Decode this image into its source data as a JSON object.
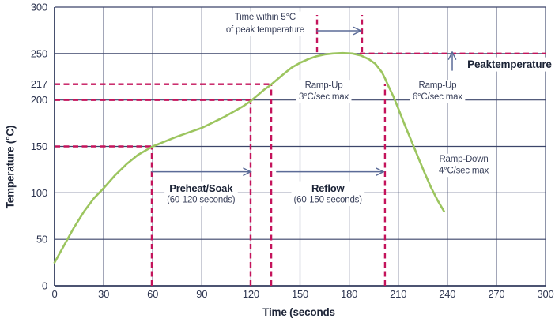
{
  "figure": {
    "background": "#ffffff"
  },
  "colors": {
    "grid": "#3c456a",
    "axis": "#333c5e",
    "tick_text": "#2c344f",
    "curve": "#9cc55f",
    "guide": "#c4135b",
    "arrow": "#5b6b97",
    "bold_text": "#1b2336",
    "text": "#3b425c"
  },
  "chart_data": {
    "type": "line",
    "title": "",
    "xlabel": "Time (seconds",
    "ylabel": "Temperature (°C)",
    "xlim": [
      0,
      300
    ],
    "ylim": [
      0,
      300
    ],
    "grid": true,
    "x_ticks": [
      0,
      30,
      60,
      90,
      120,
      150,
      180,
      210,
      240,
      270,
      300
    ],
    "y_ticks": [
      300,
      250,
      217,
      200,
      150,
      100,
      50,
      0
    ],
    "y_gridlines": [
      0,
      50,
      100,
      150,
      200,
      250,
      300
    ],
    "series": [
      {
        "name": "reflow-temperature-profile",
        "points": [
          [
            0,
            25
          ],
          [
            6,
            44
          ],
          [
            12,
            63
          ],
          [
            18,
            80
          ],
          [
            24,
            94
          ],
          [
            30,
            105
          ],
          [
            37,
            119
          ],
          [
            44,
            131
          ],
          [
            51,
            141
          ],
          [
            57,
            147
          ],
          [
            60,
            150
          ],
          [
            67,
            155
          ],
          [
            74,
            160
          ],
          [
            82,
            165
          ],
          [
            90,
            170
          ],
          [
            97,
            176
          ],
          [
            104,
            182
          ],
          [
            110,
            188
          ],
          [
            115,
            193
          ],
          [
            120,
            199
          ],
          [
            124,
            205
          ],
          [
            128,
            211
          ],
          [
            132,
            216
          ],
          [
            136,
            222
          ],
          [
            140,
            228
          ],
          [
            145,
            235
          ],
          [
            150,
            240
          ],
          [
            155,
            244
          ],
          [
            160,
            247
          ],
          [
            165,
            249
          ],
          [
            170,
            250
          ],
          [
            176,
            250.5
          ],
          [
            182,
            250
          ],
          [
            187,
            248
          ],
          [
            192,
            244
          ],
          [
            196,
            239
          ],
          [
            200,
            230
          ],
          [
            202,
            223
          ],
          [
            204,
            215
          ],
          [
            207,
            204
          ],
          [
            210,
            191
          ],
          [
            214,
            173
          ],
          [
            218,
            156
          ],
          [
            222,
            139
          ],
          [
            226,
            122
          ],
          [
            230,
            106
          ],
          [
            234,
            92
          ],
          [
            238,
            80
          ]
        ]
      }
    ],
    "guides": {
      "horizontal": [
        {
          "name": "guide-150c",
          "temp": 150,
          "t1": 0,
          "t2": 59.4
        },
        {
          "name": "guide-200c",
          "temp": 200,
          "t1": 0,
          "t2": 119.8
        },
        {
          "name": "guide-217c",
          "temp": 217,
          "t1": 0,
          "t2": 132.4
        },
        {
          "name": "guide-peak-250c",
          "temp": 250,
          "t1": 186.5,
          "t2": 300
        }
      ],
      "vertical": [
        {
          "name": "guide-60s",
          "t": 59.4,
          "temp1": 0,
          "temp2": 150
        },
        {
          "name": "guide-120s",
          "t": 119.8,
          "temp1": 0,
          "temp2": 200
        },
        {
          "name": "guide-133s",
          "t": 132.4,
          "temp1": 0,
          "temp2": 217
        },
        {
          "name": "guide-202s",
          "t": 201.9,
          "temp1": 0,
          "temp2": 217
        },
        {
          "name": "guide-peak-window-start",
          "t": 160.4,
          "temp1": 251.5,
          "temp2": 291.5
        },
        {
          "name": "guide-peak-window-end",
          "t": 187.9,
          "temp1": 251.5,
          "temp2": 291.5
        }
      ]
    },
    "arrows": [
      {
        "name": "preheat-soak-duration-arrow",
        "type": "h",
        "t1": 59.4,
        "t2": 119.8,
        "temp": 122.7
      },
      {
        "name": "reflow-duration-arrow",
        "type": "h",
        "t1": 135.7,
        "t2": 201,
        "temp": 122.7
      },
      {
        "name": "peak-window-arrow",
        "type": "h",
        "t1": 160.4,
        "t2": 187.2,
        "temp": 274.5
      },
      {
        "name": "peak-temperature-arrow",
        "type": "v",
        "t": 243,
        "temp1": 232,
        "temp2": 251.5
      }
    ],
    "annotations": [
      {
        "name": "time-within-5c-label",
        "t": 128.7,
        "temp": 283,
        "line_height": 16,
        "lines": [
          {
            "text": "Time within 5°C",
            "bold": false,
            "size": 11.5
          },
          {
            "text": "of peak temperature",
            "bold": false,
            "size": 11.5
          }
        ]
      },
      {
        "name": "peak-temperature-label",
        "t": 278,
        "temp": 238.5,
        "line_height": 16,
        "lines": [
          {
            "text": "Peaktemperature",
            "bold": true,
            "size": 13.5
          }
        ]
      },
      {
        "name": "ramp-up-3c-label",
        "t": 164.5,
        "temp": 210,
        "line_height": 14.5,
        "lines": [
          {
            "text": "Ramp-Up",
            "bold": false,
            "size": 11.5
          },
          {
            "text": "3°C/sec max",
            "bold": false,
            "size": 11.5
          }
        ]
      },
      {
        "name": "ramp-up-6c-label",
        "t": 234,
        "temp": 210,
        "line_height": 14.5,
        "lines": [
          {
            "text": "Ramp-Up",
            "bold": false,
            "size": 11.5
          },
          {
            "text": "6°C/sec max",
            "bold": false,
            "size": 11.5
          }
        ]
      },
      {
        "name": "ramp-down-label",
        "t": 250,
        "temp": 130.5,
        "line_height": 14.5,
        "lines": [
          {
            "text": "Ramp-Down",
            "bold": false,
            "size": 11.5
          },
          {
            "text": "4°C/sec max",
            "bold": false,
            "size": 11.5
          }
        ]
      },
      {
        "name": "preheat-soak-label",
        "t": 89.5,
        "temp": 99,
        "line_height": 14,
        "lines": [
          {
            "text": "Preheat/Soak",
            "bold": true,
            "size": 13
          },
          {
            "text": "(60-120 seconds)",
            "bold": false,
            "size": 11.5
          }
        ]
      },
      {
        "name": "reflow-label",
        "t": 167,
        "temp": 99,
        "line_height": 14,
        "lines": [
          {
            "text": "Reflow",
            "bold": true,
            "size": 13
          },
          {
            "text": "(60-150 seconds)",
            "bold": false,
            "size": 11.5
          }
        ]
      }
    ]
  }
}
